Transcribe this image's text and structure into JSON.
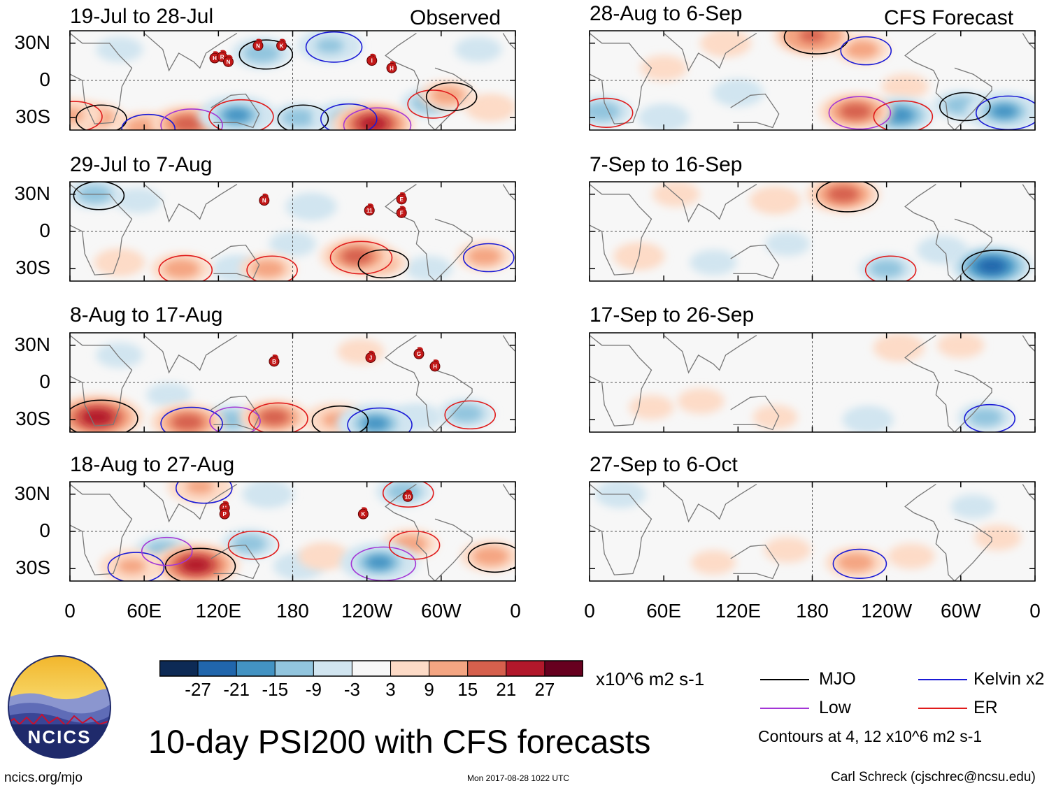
{
  "chart_data": {
    "type": "heatmap",
    "title": "10-day PSI200 with CFS forecasts",
    "variable": "200-hPa streamfunction anomaly",
    "units": "x10^6 m2 s-1",
    "column_headers": {
      "left": "Observed",
      "right": "CFS Forecast"
    },
    "lat_ticks": [
      "30N",
      "0",
      "30S"
    ],
    "lon_ticks": [
      "0",
      "60E",
      "120E",
      "180",
      "120W",
      "60W",
      "0"
    ],
    "lon_range": [
      0,
      360
    ],
    "lat_range": [
      -40,
      40
    ],
    "colorbar": {
      "levels": [
        "-27",
        "-21",
        "-15",
        "-9",
        "-3",
        "3",
        "9",
        "15",
        "21",
        "27"
      ],
      "colors": [
        "#0d2a55",
        "#2166ac",
        "#4393c3",
        "#92c5de",
        "#d1e5f0",
        "#f7f7f7",
        "#fddbc7",
        "#f4a582",
        "#d6604d",
        "#b2182b",
        "#67001f"
      ]
    },
    "panels": [
      {
        "column": "left",
        "row": 0,
        "title": "19-Jul to 28-Jul",
        "anomalies": [
          {
            "lon": 155,
            "lat": 22,
            "v": -12
          },
          {
            "lon": 210,
            "lat": 28,
            "v": -14
          },
          {
            "lon": 40,
            "lat": 25,
            "v": -6
          },
          {
            "lon": 0,
            "lat": -28,
            "v": 14
          },
          {
            "lon": 22,
            "lat": -30,
            "v": 10
          },
          {
            "lon": 60,
            "lat": -38,
            "v": 12
          },
          {
            "lon": 95,
            "lat": -35,
            "v": 18
          },
          {
            "lon": 135,
            "lat": -28,
            "v": -20
          },
          {
            "lon": 185,
            "lat": -30,
            "v": -10
          },
          {
            "lon": 222,
            "lat": -30,
            "v": -14
          },
          {
            "lon": 245,
            "lat": -35,
            "v": 22
          },
          {
            "lon": 290,
            "lat": -18,
            "v": -10
          },
          {
            "lon": 305,
            "lat": -12,
            "v": 10
          },
          {
            "lon": 340,
            "lat": -22,
            "v": 8
          },
          {
            "lon": 330,
            "lat": 25,
            "v": -6
          }
        ],
        "storms": [
          {
            "label": "N",
            "lon": 152,
            "lat": 28
          },
          {
            "label": "K",
            "lon": 171,
            "lat": 28
          },
          {
            "label": "H",
            "lon": 117,
            "lat": 18
          },
          {
            "label": "R",
            "lon": 123,
            "lat": 19
          },
          {
            "label": "N",
            "lon": 128,
            "lat": 15
          },
          {
            "label": "I",
            "lon": 244,
            "lat": 16
          },
          {
            "label": "H",
            "lon": 260,
            "lat": 10
          }
        ]
      },
      {
        "column": "left",
        "row": 1,
        "title": "29-Jul to 7-Aug",
        "anomalies": [
          {
            "lon": 20,
            "lat": 30,
            "v": -10
          },
          {
            "lon": 55,
            "lat": 25,
            "v": -6
          },
          {
            "lon": 40,
            "lat": -25,
            "v": 8
          },
          {
            "lon": 90,
            "lat": -30,
            "v": 12
          },
          {
            "lon": 135,
            "lat": -30,
            "v": -8
          },
          {
            "lon": 180,
            "lat": -10,
            "v": -6
          },
          {
            "lon": 195,
            "lat": 20,
            "v": -8
          },
          {
            "lon": 232,
            "lat": -20,
            "v": 18
          },
          {
            "lon": 250,
            "lat": -25,
            "v": 10
          },
          {
            "lon": 335,
            "lat": -20,
            "v": 10
          },
          {
            "lon": 290,
            "lat": -30,
            "v": -6
          },
          {
            "lon": 160,
            "lat": -30,
            "v": 10
          }
        ],
        "storms": [
          {
            "label": "N",
            "lon": 157,
            "lat": 25
          },
          {
            "label": "11",
            "lon": 242,
            "lat": 17
          },
          {
            "label": "E",
            "lon": 268,
            "lat": 26
          },
          {
            "label": "F",
            "lon": 268,
            "lat": 15
          }
        ]
      },
      {
        "column": "left",
        "row": 2,
        "title": "8-Aug to 17-Aug",
        "anomalies": [
          {
            "lon": 22,
            "lat": -28,
            "v": 26
          },
          {
            "lon": 95,
            "lat": -32,
            "v": 18
          },
          {
            "lon": 130,
            "lat": -30,
            "v": -10
          },
          {
            "lon": 165,
            "lat": -28,
            "v": 16
          },
          {
            "lon": 215,
            "lat": -30,
            "v": 14
          },
          {
            "lon": 247,
            "lat": -33,
            "v": -20
          },
          {
            "lon": 280,
            "lat": -28,
            "v": -8
          },
          {
            "lon": 320,
            "lat": -25,
            "v": -10
          },
          {
            "lon": 40,
            "lat": 22,
            "v": -6
          },
          {
            "lon": 235,
            "lat": 25,
            "v": 6
          },
          {
            "lon": 80,
            "lat": -10,
            "v": -5
          }
        ],
        "storms": [
          {
            "label": "B",
            "lon": 165,
            "lat": 17
          },
          {
            "label": "J",
            "lon": 243,
            "lat": 20
          },
          {
            "label": "G",
            "lon": 282,
            "lat": 23
          },
          {
            "label": "H",
            "lon": 295,
            "lat": 13
          }
        ]
      },
      {
        "column": "left",
        "row": 3,
        "title": "18-Aug to 27-Aug",
        "anomalies": [
          {
            "lon": 102,
            "lat": -27,
            "v": 24
          },
          {
            "lon": 50,
            "lat": -28,
            "v": 14
          },
          {
            "lon": 75,
            "lat": -15,
            "v": -10
          },
          {
            "lon": 145,
            "lat": -10,
            "v": -10
          },
          {
            "lon": 185,
            "lat": -28,
            "v": -8
          },
          {
            "lon": 205,
            "lat": -20,
            "v": 8
          },
          {
            "lon": 250,
            "lat": -25,
            "v": -20
          },
          {
            "lon": 275,
            "lat": -10,
            "v": 10
          },
          {
            "lon": 340,
            "lat": -20,
            "v": 12
          },
          {
            "lon": 105,
            "lat": 36,
            "v": 14
          },
          {
            "lon": 160,
            "lat": 30,
            "v": -8
          },
          {
            "lon": 270,
            "lat": 32,
            "v": -10
          }
        ],
        "storms": [
          {
            "label": "H",
            "lon": 125,
            "lat": 19
          },
          {
            "label": "P",
            "lon": 125,
            "lat": 14
          },
          {
            "label": "K",
            "lon": 237,
            "lat": 14
          },
          {
            "label": "10",
            "lon": 273,
            "lat": 28
          }
        ]
      },
      {
        "column": "right",
        "row": 0,
        "title": "28-Aug to 6-Sep",
        "anomalies": [
          {
            "lon": 180,
            "lat": 36,
            "v": 20
          },
          {
            "lon": 220,
            "lat": 25,
            "v": 10
          },
          {
            "lon": 110,
            "lat": 30,
            "v": 8
          },
          {
            "lon": 10,
            "lat": -25,
            "v": -12
          },
          {
            "lon": 60,
            "lat": -30,
            "v": -8
          },
          {
            "lon": 120,
            "lat": -10,
            "v": -8
          },
          {
            "lon": 215,
            "lat": -25,
            "v": 18
          },
          {
            "lon": 250,
            "lat": -28,
            "v": -16
          },
          {
            "lon": 300,
            "lat": -20,
            "v": -10
          },
          {
            "lon": 335,
            "lat": -25,
            "v": -20
          },
          {
            "lon": 60,
            "lat": 10,
            "v": 6
          },
          {
            "lon": 255,
            "lat": -5,
            "v": 6
          }
        ],
        "storms": []
      },
      {
        "column": "right",
        "row": 1,
        "title": "7-Sep to 16-Sep",
        "anomalies": [
          {
            "lon": 205,
            "lat": 30,
            "v": 18
          },
          {
            "lon": 150,
            "lat": 25,
            "v": 8
          },
          {
            "lon": 70,
            "lat": 30,
            "v": 6
          },
          {
            "lon": 240,
            "lat": -30,
            "v": -10
          },
          {
            "lon": 325,
            "lat": -28,
            "v": -22
          },
          {
            "lon": 285,
            "lat": -15,
            "v": -8
          },
          {
            "lon": 100,
            "lat": -25,
            "v": -6
          },
          {
            "lon": 40,
            "lat": -20,
            "v": 8
          },
          {
            "lon": 160,
            "lat": -10,
            "v": -5
          }
        ],
        "storms": []
      },
      {
        "column": "right",
        "row": 2,
        "title": "17-Sep to 26-Sep",
        "anomalies": [
          {
            "lon": 250,
            "lat": 28,
            "v": 8
          },
          {
            "lon": 300,
            "lat": 30,
            "v": 6
          },
          {
            "lon": 90,
            "lat": -15,
            "v": 6
          },
          {
            "lon": 150,
            "lat": -28,
            "v": 5
          },
          {
            "lon": 225,
            "lat": -30,
            "v": -8
          },
          {
            "lon": 320,
            "lat": -28,
            "v": -10
          },
          {
            "lon": 50,
            "lat": -20,
            "v": 5
          }
        ],
        "storms": []
      },
      {
        "column": "right",
        "row": 3,
        "title": "27-Sep to 6-Oct",
        "anomalies": [
          {
            "lon": 25,
            "lat": 30,
            "v": -8
          },
          {
            "lon": 215,
            "lat": -25,
            "v": 12
          },
          {
            "lon": 160,
            "lat": -15,
            "v": 6
          },
          {
            "lon": 260,
            "lat": -20,
            "v": 6
          },
          {
            "lon": 100,
            "lat": -25,
            "v": 5
          },
          {
            "lon": 310,
            "lat": 20,
            "v": -5
          },
          {
            "lon": 330,
            "lat": -5,
            "v": 6
          }
        ],
        "storms": []
      }
    ]
  },
  "legend": {
    "units_label": "x10^6 m2 s-1",
    "items": [
      {
        "label": "MJO",
        "color": "#000000"
      },
      {
        "label": "Kelvin x2",
        "color": "#1a1ad6"
      },
      {
        "label": "Low",
        "color": "#a335d6"
      },
      {
        "label": "ER",
        "color": "#e01b1b"
      }
    ],
    "contours_note": "Contours at 4, 12 x10^6 m2 s-1"
  },
  "logo": {
    "text": "NCICS"
  },
  "footer": {
    "url": "ncics.org/mjo",
    "timestamp": "Mon 2017-08-28 1022 UTC",
    "author": "Carl Schreck (cjschrec@ncsu.edu)"
  }
}
